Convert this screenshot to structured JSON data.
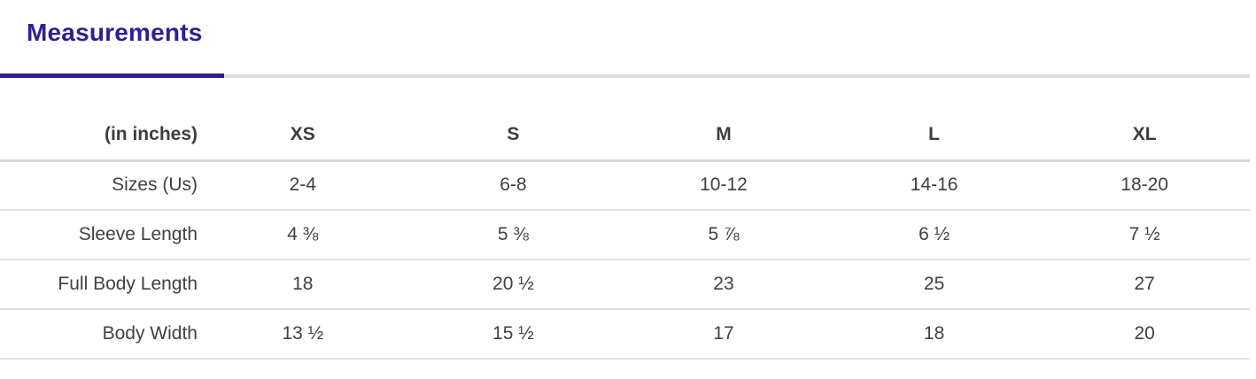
{
  "page": {
    "accent_color": "#2a2194",
    "text_color": "#414042"
  },
  "tabs": {
    "measurements_label": "Measurements"
  },
  "table": {
    "unit_label": "(in inches)",
    "columns": [
      "XS",
      "S",
      "M",
      "L",
      "XL"
    ],
    "rows": [
      {
        "label": "Sizes (Us)",
        "values": [
          "2-4",
          "6-8",
          "10-12",
          "14-16",
          "18-20"
        ]
      },
      {
        "label": "Sleeve Length",
        "values": [
          "4 ⅜",
          "5 ⅜",
          "5 ⅞",
          "6 ½",
          "7 ½"
        ]
      },
      {
        "label": "Full Body Length",
        "values": [
          "18",
          "20 ½",
          "23",
          "25",
          "27"
        ]
      },
      {
        "label": "Body Width",
        "values": [
          "13 ½",
          "15 ½",
          "17",
          "18",
          "20"
        ]
      }
    ]
  }
}
